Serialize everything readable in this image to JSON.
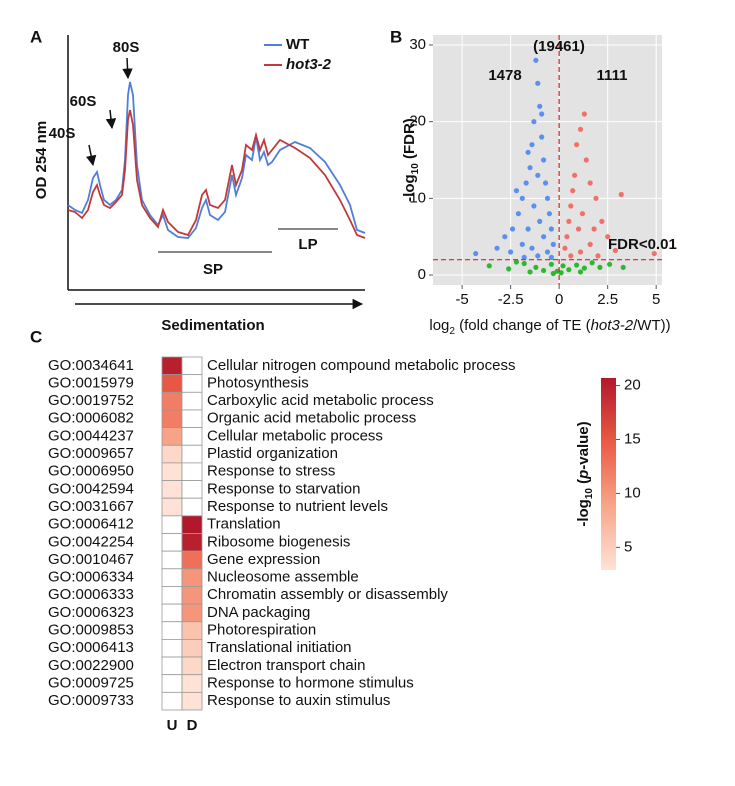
{
  "chart_data": [
    {
      "type": "line",
      "panel_label": "A",
      "ylabel": "OD 254 nm",
      "xlabel": "Sedimentation",
      "xlim": [
        0,
        297
      ],
      "ylim": [
        0,
        255
      ],
      "annotations": [
        "40S",
        "60S",
        "80S",
        "SP",
        "LP"
      ],
      "series": [
        {
          "name": "WT",
          "color": "#4f7fd6",
          "x": [
            0,
            7,
            14,
            20,
            25,
            29,
            32,
            36,
            42,
            48,
            54,
            57,
            60,
            62,
            65,
            69,
            74,
            82,
            90,
            95,
            100,
            110,
            120,
            128,
            134,
            138,
            142,
            150,
            157,
            164,
            168,
            174,
            178,
            184,
            188,
            192,
            196,
            200,
            204,
            212,
            227,
            242,
            257,
            272,
            282,
            289,
            297
          ],
          "values": [
            85,
            80,
            77,
            90,
            112,
            118,
            105,
            90,
            85,
            90,
            100,
            130,
            195,
            208,
            195,
            125,
            90,
            75,
            65,
            75,
            60,
            53,
            52,
            62,
            82,
            90,
            75,
            70,
            78,
            115,
            95,
            112,
            135,
            130,
            153,
            130,
            138,
            125,
            128,
            140,
            148,
            142,
            128,
            105,
            85,
            60,
            57
          ]
        },
        {
          "name": "hot3-2",
          "color": "#c0393b",
          "x": [
            0,
            7,
            14,
            20,
            25,
            29,
            32,
            36,
            42,
            48,
            54,
            57,
            60,
            62,
            65,
            69,
            74,
            82,
            90,
            95,
            100,
            110,
            120,
            128,
            134,
            138,
            142,
            150,
            157,
            164,
            168,
            174,
            178,
            184,
            188,
            192,
            196,
            200,
            204,
            212,
            227,
            242,
            257,
            272,
            282,
            289,
            297
          ],
          "values": [
            80,
            78,
            72,
            80,
            98,
            105,
            95,
            85,
            82,
            88,
            95,
            120,
            170,
            180,
            165,
            110,
            85,
            72,
            63,
            80,
            68,
            58,
            55,
            70,
            95,
            100,
            85,
            82,
            90,
            125,
            105,
            120,
            145,
            140,
            155,
            140,
            150,
            135,
            140,
            150,
            142,
            132,
            115,
            90,
            70,
            55,
            52
          ]
        }
      ]
    },
    {
      "type": "scatter",
      "panel_label": "B",
      "ylabel": [
        "-log",
        "10",
        " (FDR)"
      ],
      "xlabel": [
        "log",
        "2",
        " (fold change of TE (",
        "hot3-2",
        "/WT))"
      ],
      "xlim": [
        -6.5,
        5.3
      ],
      "ylim": [
        -1.3,
        31.3
      ],
      "xticks": [
        -5,
        -2.5,
        0,
        2.5,
        5
      ],
      "yticks": [
        0,
        10,
        20,
        30
      ],
      "grid": true,
      "hline": 2,
      "vline": 0,
      "annotations": [
        "(19461)",
        "1478",
        "1111",
        "FDR<0.01"
      ],
      "series": [
        {
          "color": "#5b8ff0",
          "x": [
            -1.2,
            -1.1,
            -1.0,
            -1.3,
            -0.9,
            -1.4,
            -0.8,
            -1.5,
            -1.1,
            -1.7,
            -0.7,
            -1.9,
            -0.6,
            -1.3,
            -2.1,
            -0.5,
            -1.0,
            -2.4,
            -1.6,
            -0.4,
            -2.8,
            -0.8,
            -1.9,
            -0.3,
            -3.2,
            -1.4,
            -0.6,
            -2.5,
            -1.1,
            -4.3,
            -1.8,
            -0.4,
            -2.2,
            -1.6,
            -0.9
          ],
          "values": [
            28,
            25,
            22,
            20,
            18,
            17,
            15,
            14,
            13,
            12,
            12,
            10,
            10,
            9,
            8,
            8,
            7,
            6,
            6,
            6,
            5,
            5,
            4,
            4,
            3.5,
            3.5,
            3,
            3,
            2.5,
            2.8,
            2.3,
            2.3,
            11,
            16,
            21
          ]
        },
        {
          "color": "#f0706a",
          "x": [
            1.3,
            1.1,
            0.9,
            1.4,
            0.8,
            1.6,
            0.7,
            1.9,
            0.6,
            1.2,
            2.2,
            0.5,
            1.0,
            2.5,
            0.4,
            1.6,
            0.3,
            2.9,
            1.1,
            0.6,
            2.0,
            3.2,
            1.8,
            4.9
          ],
          "values": [
            21,
            19,
            17,
            15,
            13,
            12,
            11,
            10,
            9,
            8,
            7,
            7,
            6,
            5,
            5,
            4,
            3.5,
            3.2,
            3,
            2.5,
            2.5,
            10.5,
            6,
            2.8
          ]
        },
        {
          "color": "#2eb82e",
          "x": [
            -3.6,
            -2.6,
            -1.8,
            -1.2,
            -0.8,
            -0.4,
            -0.1,
            0.2,
            0.5,
            0.9,
            1.3,
            1.7,
            2.1,
            2.6,
            3.3,
            -0.3,
            0.1,
            -1.5,
            1.1,
            -2.2
          ],
          "values": [
            1.2,
            0.8,
            1.5,
            1,
            0.6,
            1.4,
            0.5,
            1.2,
            0.7,
            1.3,
            0.9,
            1.6,
            1.0,
            1.4,
            1.0,
            0.2,
            0.3,
            0.4,
            0.4,
            1.7
          ]
        }
      ]
    },
    {
      "type": "heatmap",
      "panel_label": "C",
      "rows": [
        {
          "id": "GO:0034641",
          "label": "Cellular nitrogen compound metabolic process"
        },
        {
          "id": "GO:0015979",
          "label": "Photosynthesis"
        },
        {
          "id": "GO:0019752",
          "label": "Carboxylic acid metabolic process"
        },
        {
          "id": "GO:0006082",
          "label": "Organic acid metabolic process"
        },
        {
          "id": "GO:0044237",
          "label": "Cellular metabolic process"
        },
        {
          "id": "GO:0009657",
          "label": "Plastid organization"
        },
        {
          "id": "GO:0006950",
          "label": "Response to stress"
        },
        {
          "id": "GO:0042594",
          "label": "Response to starvation"
        },
        {
          "id": "GO:0031667",
          "label": "Response to nutrient levels"
        },
        {
          "id": "GO:0006412",
          "label": "Translation"
        },
        {
          "id": "GO:0042254",
          "label": "Ribosome biogenesis"
        },
        {
          "id": "GO:0010467",
          "label": "Gene expression"
        },
        {
          "id": "GO:0006334",
          "label": "Nucleosome assemble"
        },
        {
          "id": "GO:0006333",
          "label": "Chromatin assembly or disassembly"
        },
        {
          "id": "GO:0006323",
          "label": "DNA packaging"
        },
        {
          "id": "GO:0009853",
          "label": "Photorespiration"
        },
        {
          "id": "GO:0006413",
          "label": "Translational initiation"
        },
        {
          "id": "GO:0022900",
          "label": "Electron transport chain"
        },
        {
          "id": "GO:0009725",
          "label": "Response to hormone stimulus"
        },
        {
          "id": "GO:0009733",
          "label": "Response to auxin stimulus"
        }
      ],
      "columns": [
        "U",
        "D"
      ],
      "values": [
        [
          20,
          null
        ],
        [
          15,
          null
        ],
        [
          12,
          null
        ],
        [
          12,
          null
        ],
        [
          9,
          null
        ],
        [
          4,
          null
        ],
        [
          3,
          null
        ],
        [
          3,
          null
        ],
        [
          3,
          null
        ],
        [
          null,
          21
        ],
        [
          null,
          20
        ],
        [
          null,
          13
        ],
        [
          null,
          10
        ],
        [
          null,
          10
        ],
        [
          null,
          10
        ],
        [
          null,
          6
        ],
        [
          null,
          5
        ],
        [
          null,
          4
        ],
        [
          null,
          3
        ],
        [
          null,
          3
        ]
      ],
      "colorbar_label": [
        "-log",
        "10",
        " (",
        "p",
        "-value)"
      ],
      "clim": [
        2.9,
        20.7
      ],
      "cticks": [
        5,
        10,
        15,
        20
      ],
      "colormap": [
        "#fde3d6",
        "#f8a58a",
        "#ea5a44",
        "#b2182b"
      ]
    }
  ]
}
